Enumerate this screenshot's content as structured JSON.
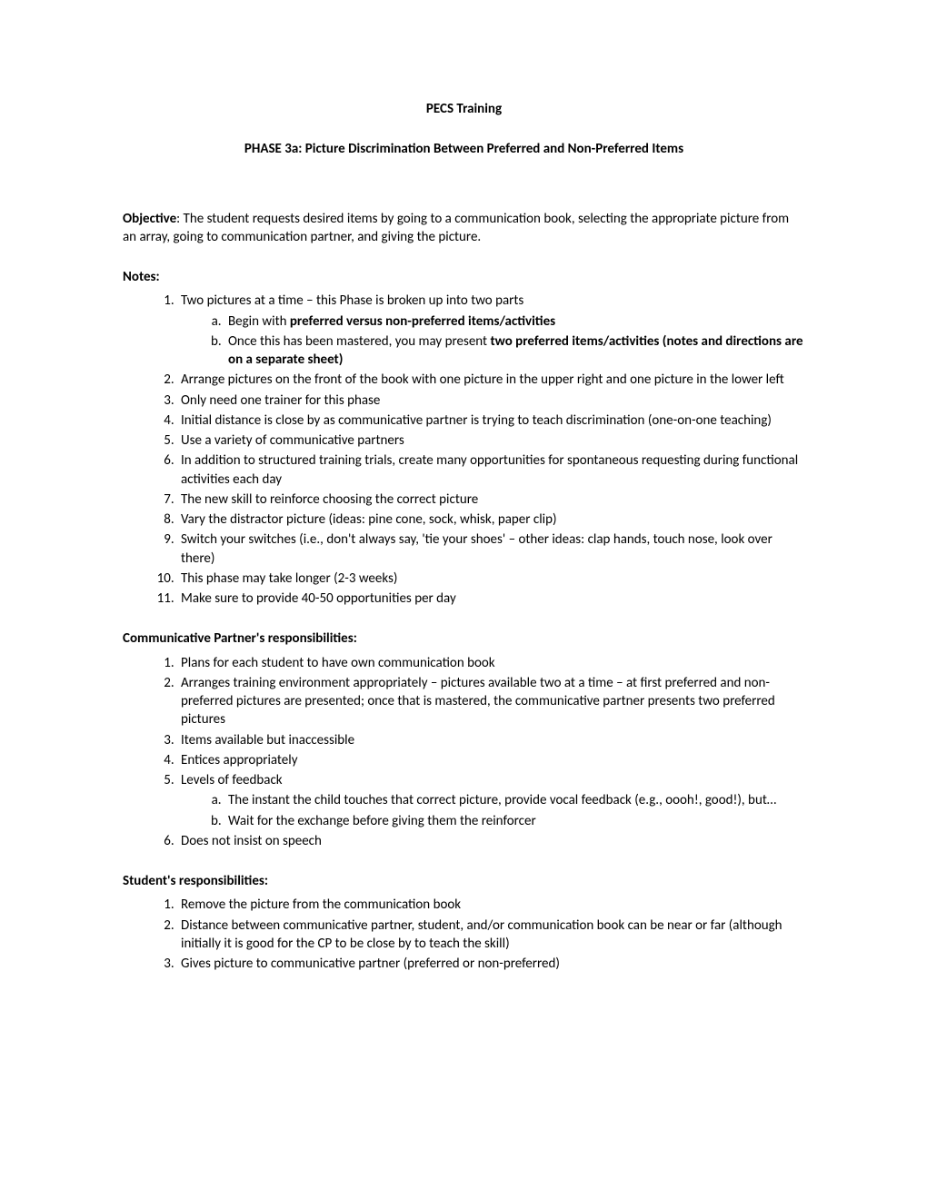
{
  "title": "PECS Training",
  "subtitle": "PHASE 3a: Picture Discrimination Between Preferred and Non-Preferred Items",
  "objective_label": "Objective",
  "objective_text": ":  The student requests desired items by going to a communication book, selecting the appropriate picture from an array, going to communication partner, and giving the picture.",
  "notes_label": "Notes:",
  "notes": {
    "n1": "Two pictures at a time – this Phase is broken up into two parts",
    "n1a_pre": "Begin with ",
    "n1a_bold": "preferred versus non-preferred items/activities",
    "n1b_pre": "Once this has been mastered, you may present ",
    "n1b_bold": "two preferred items/activities (notes and directions are on a separate sheet)",
    "n2": "Arrange pictures on the front of the book with one picture in the upper right and one picture in the lower left",
    "n3": "Only need one trainer for this phase",
    "n4": "Initial distance is close by as communicative partner is trying to teach discrimination (one-on-one teaching)",
    "n5": "Use a variety of communicative partners",
    "n6": "In addition to structured training trials, create many opportunities for spontaneous requesting during functional activities each day",
    "n7": "The new skill to reinforce choosing the correct picture",
    "n8": "Vary the distractor picture (ideas: pine cone, sock, whisk, paper clip)",
    "n9": "Switch your switches (i.e., don't always say, 'tie your shoes' – other ideas: clap hands, touch nose, look over there)",
    "n10": "This phase may take longer (2-3 weeks)",
    "n11": "Make sure to provide 40-50 opportunities per day"
  },
  "cp_label": "Communicative Partner's responsibilities:",
  "cp": {
    "c1": "Plans for each student to have own communication book",
    "c2": "Arranges training environment appropriately – pictures available two at a time – at first preferred and non-preferred pictures are presented; once that is mastered, the communicative partner presents two preferred pictures",
    "c3": "Items available but inaccessible",
    "c4": "Entices appropriately",
    "c5": "Levels of feedback",
    "c5a": "The instant the child touches that correct picture, provide vocal feedback (e.g., oooh!, good!), but…",
    "c5b": "Wait for the exchange before giving them the reinforcer",
    "c6": "Does not insist on speech"
  },
  "student_label": "Student's responsibilities:",
  "student": {
    "s1": "Remove the picture from the communication book",
    "s2": "Distance between communicative partner, student, and/or communication book can be near or far (although initially it is good for the CP to be close by to teach the skill)",
    "s3": "Gives picture to communicative partner (preferred or non-preferred)"
  }
}
